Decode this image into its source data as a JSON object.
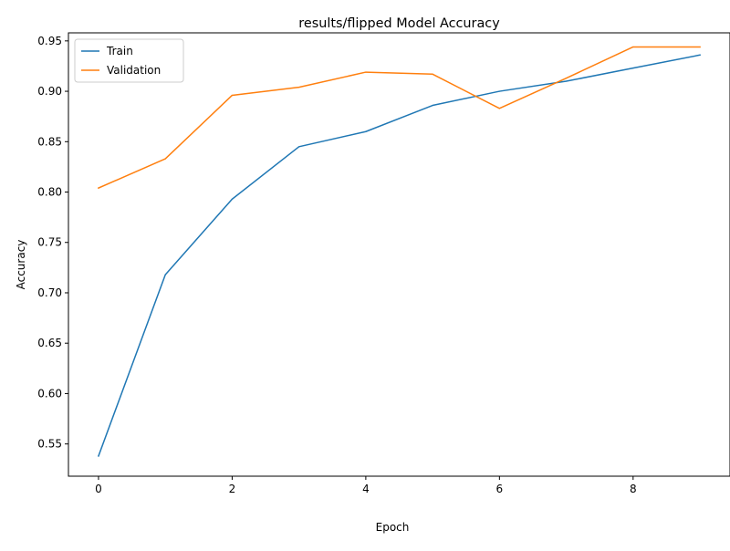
{
  "chart_data": {
    "type": "line",
    "title": "results/flipped Model Accuracy",
    "xlabel": "Epoch",
    "ylabel": "Accuracy",
    "x": [
      0,
      1,
      2,
      3,
      4,
      5,
      6,
      7,
      8,
      9
    ],
    "xlim": [
      -0.45,
      9.45
    ],
    "ylim": [
      0.518,
      0.958
    ],
    "xticks": [
      0,
      2,
      4,
      6,
      8
    ],
    "xtick_labels": [
      "0",
      "2",
      "4",
      "6",
      "8"
    ],
    "yticks": [
      0.55,
      0.6,
      0.65,
      0.7,
      0.75,
      0.8,
      0.85,
      0.9,
      0.95
    ],
    "ytick_labels": [
      "0.55",
      "0.60",
      "0.65",
      "0.70",
      "0.75",
      "0.80",
      "0.85",
      "0.90",
      "0.95"
    ],
    "grid": false,
    "legend_position": "top-left",
    "series": [
      {
        "name": "Train",
        "color": "#1f77b4",
        "values": [
          0.538,
          0.718,
          0.793,
          0.845,
          0.86,
          0.886,
          0.9,
          0.91,
          0.923,
          0.936
        ]
      },
      {
        "name": "Validation",
        "color": "#ff7f0e",
        "values": [
          0.804,
          0.833,
          0.896,
          0.904,
          0.919,
          0.917,
          0.883,
          0.913,
          0.944,
          0.944
        ]
      }
    ]
  }
}
